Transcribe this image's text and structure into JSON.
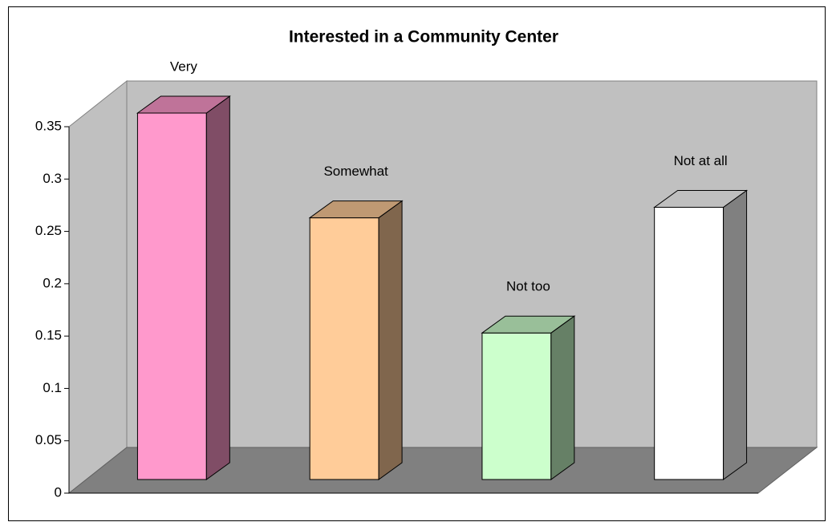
{
  "chart_data": {
    "type": "bar",
    "title": "Interested in a Community Center",
    "categories": [
      "Very",
      "Somewhat",
      "Not too",
      "Not at all"
    ],
    "values": [
      0.35,
      0.25,
      0.14,
      0.26
    ],
    "colors": [
      "#ff99cc",
      "#ffcc99",
      "#ccffcc",
      "#ffffff"
    ],
    "ylim": [
      0,
      0.35
    ],
    "yticks": [
      0,
      0.05,
      0.1,
      0.15,
      0.2,
      0.25,
      0.3,
      0.35
    ]
  }
}
